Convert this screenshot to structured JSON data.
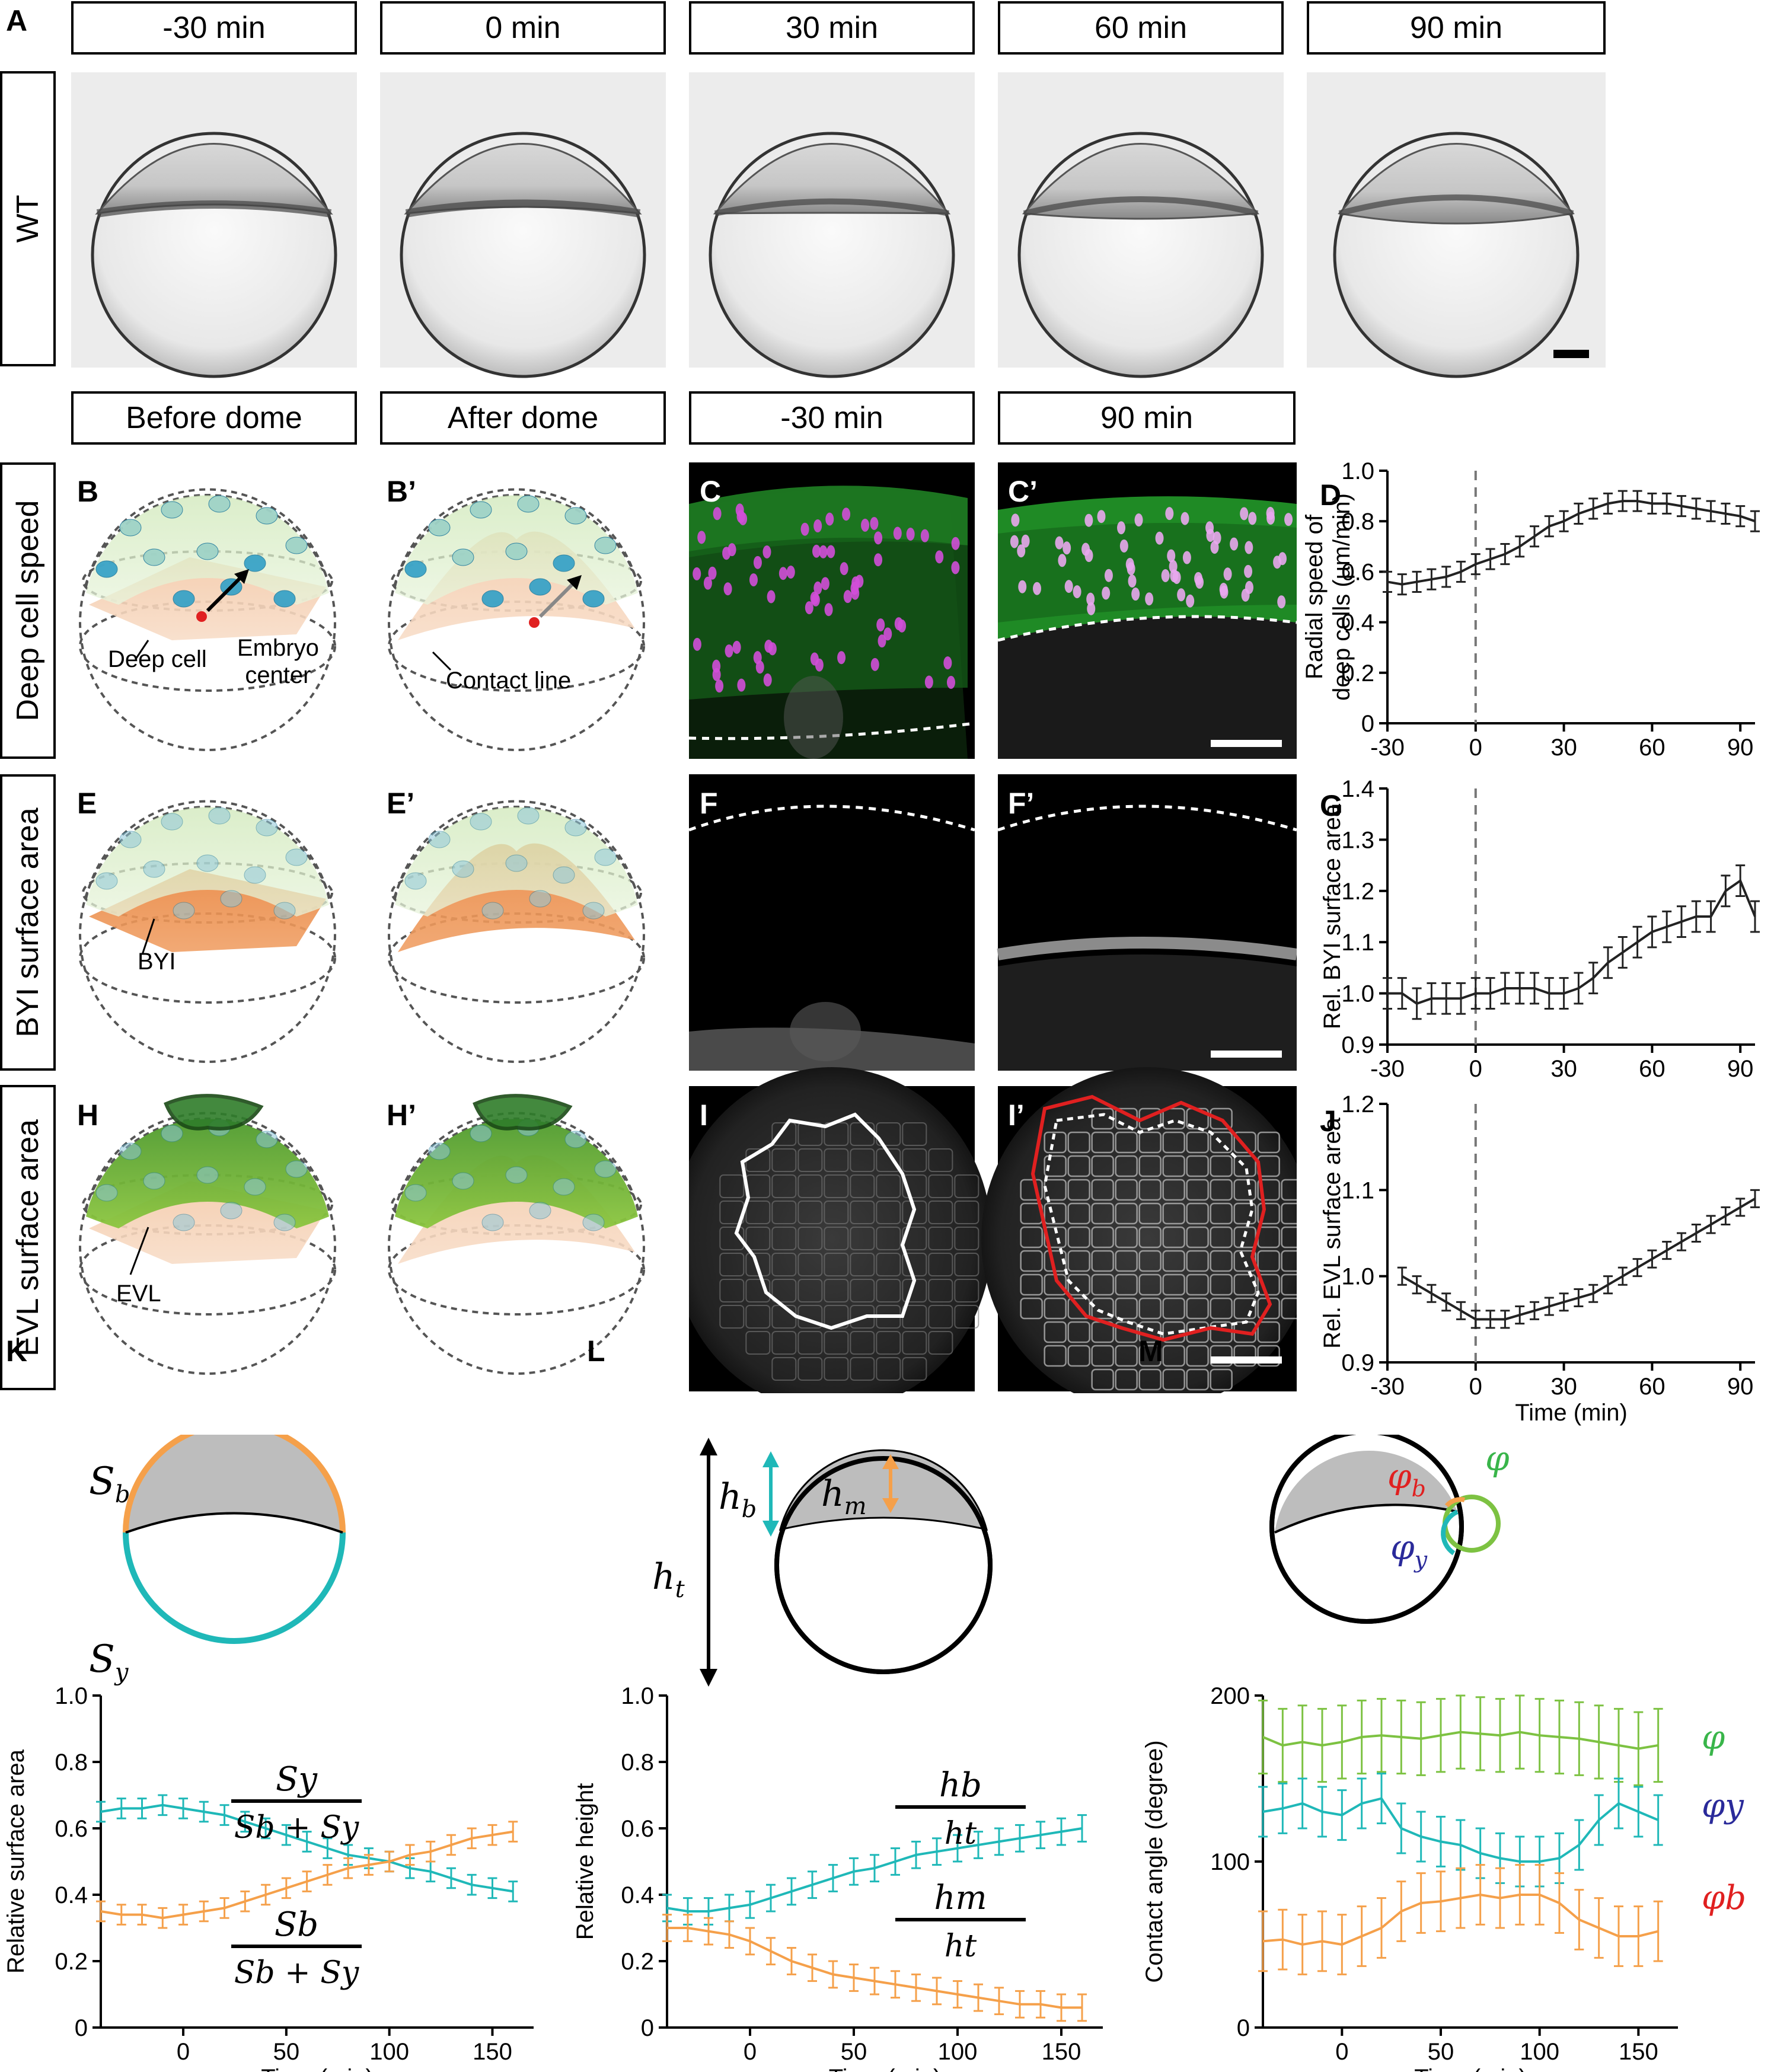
{
  "letters": {
    "A": "A",
    "B": "B",
    "Bp": "B’",
    "C": "C",
    "Cp": "C’",
    "D": "D",
    "E": "E",
    "Ep": "E’",
    "F": "F",
    "Fp": "F’",
    "G": "G",
    "H": "H",
    "Hp": "H’",
    "I": "I",
    "Ip": "I’",
    "J": "J",
    "K": "K",
    "L": "L",
    "M": "M"
  },
  "rowA": {
    "headers": [
      "-30 min",
      "0 min",
      "30 min",
      "60 min",
      "90 min"
    ],
    "row_label": "WT"
  },
  "rowB": {
    "headers": [
      "Before dome",
      "After dome",
      "-30 min",
      "90 min"
    ]
  },
  "row_labels": {
    "deep": "Deep cell speed",
    "byi": "BYI surface area",
    "evl": "EVL surface area"
  },
  "annotations": {
    "deep_cell": "Deep cell",
    "embryo_center_1": "Embryo",
    "embryo_center_2": "center",
    "contact_line": "Contact line",
    "byi": "BYI",
    "evl": "EVL"
  },
  "colors": {
    "green": "#39b54a",
    "magenta": "#d24fd8",
    "cyan": "#1fb8b8",
    "orange": "#f5a04a",
    "lime": "#7dc242",
    "red": "#e02020",
    "navy": "#2a2a9a"
  },
  "chart_data": [
    {
      "id": "D",
      "type": "line",
      "ylabel": "Radial speed of deep cells (µm/min)",
      "ylabel_line1": "Radial speed of",
      "ylabel_line2": "deep cells (µm/min)",
      "xlim": [
        -30,
        95
      ],
      "ylim": [
        0,
        1.0
      ],
      "xticks": [
        -30,
        0,
        30,
        60,
        90
      ],
      "yticks": [
        0,
        0.2,
        0.4,
        0.6,
        0.8,
        1.0
      ],
      "ytick_labels": [
        "0",
        "0.2",
        "0.4",
        "0.6",
        "0.8",
        "1.0"
      ],
      "x": [
        -30,
        -25,
        -20,
        -15,
        -10,
        -5,
        0,
        5,
        10,
        15,
        20,
        25,
        30,
        35,
        40,
        45,
        50,
        55,
        60,
        65,
        70,
        75,
        80,
        85,
        90,
        95
      ],
      "y": [
        0.56,
        0.55,
        0.56,
        0.57,
        0.58,
        0.6,
        0.63,
        0.65,
        0.67,
        0.7,
        0.74,
        0.78,
        0.8,
        0.83,
        0.85,
        0.87,
        0.88,
        0.88,
        0.87,
        0.87,
        0.86,
        0.85,
        0.84,
        0.83,
        0.82,
        0.8
      ],
      "err": 0.04
    },
    {
      "id": "G",
      "type": "line",
      "ylabel": "Rel. BYI surface area",
      "xlim": [
        -30,
        95
      ],
      "ylim": [
        0.9,
        1.4
      ],
      "xticks": [
        -30,
        0,
        30,
        60,
        90
      ],
      "yticks": [
        0.9,
        1.0,
        1.1,
        1.2,
        1.3,
        1.4
      ],
      "ytick_labels": [
        "0.9",
        "1.0",
        "1.1",
        "1.2",
        "1.3",
        "1.4"
      ],
      "x": [
        -30,
        -25,
        -20,
        -15,
        -10,
        -5,
        0,
        5,
        10,
        15,
        20,
        25,
        30,
        35,
        40,
        45,
        50,
        55,
        60,
        65,
        70,
        75,
        80,
        85,
        90,
        95
      ],
      "y": [
        1.0,
        1.0,
        0.98,
        0.99,
        0.99,
        0.99,
        1.0,
        1.0,
        1.01,
        1.01,
        1.01,
        1.0,
        1.0,
        1.01,
        1.03,
        1.06,
        1.08,
        1.1,
        1.12,
        1.13,
        1.14,
        1.15,
        1.15,
        1.2,
        1.22,
        1.15
      ],
      "err": 0.03
    },
    {
      "id": "J",
      "type": "line",
      "xlabel": "Time (min)",
      "ylabel": "Rel. EVL surface area",
      "xlim": [
        -30,
        95
      ],
      "ylim": [
        0.9,
        1.2
      ],
      "xticks": [
        -30,
        0,
        30,
        60,
        90
      ],
      "yticks": [
        0.9,
        1.0,
        1.1,
        1.2
      ],
      "ytick_labels": [
        "0.9",
        "1.0",
        "1.1",
        "1.2"
      ],
      "x": [
        -25,
        -20,
        -15,
        -10,
        -5,
        0,
        5,
        10,
        15,
        20,
        25,
        30,
        35,
        40,
        45,
        50,
        55,
        60,
        65,
        70,
        75,
        80,
        85,
        90,
        95
      ],
      "y": [
        1.0,
        0.99,
        0.98,
        0.97,
        0.96,
        0.95,
        0.95,
        0.95,
        0.955,
        0.96,
        0.965,
        0.97,
        0.975,
        0.98,
        0.99,
        1.0,
        1.01,
        1.02,
        1.03,
        1.04,
        1.05,
        1.06,
        1.07,
        1.08,
        1.09
      ],
      "err": 0.01
    },
    {
      "id": "K",
      "type": "line",
      "xlabel": "Time (min)",
      "ylabel": "Relative surface area",
      "xlim": [
        -40,
        170
      ],
      "ylim": [
        0,
        1.0
      ],
      "xticks": [
        0,
        50,
        100,
        150
      ],
      "yticks": [
        0,
        0.2,
        0.4,
        0.6,
        0.8,
        1.0
      ],
      "ytick_labels": [
        "0",
        "0.2",
        "0.4",
        "0.6",
        "0.8",
        "1.0"
      ],
      "x": [
        -40,
        -30,
        -20,
        -10,
        0,
        10,
        20,
        30,
        40,
        50,
        60,
        70,
        80,
        90,
        100,
        110,
        120,
        130,
        140,
        150,
        160
      ],
      "series": [
        {
          "color": "#1fb8b8",
          "y": [
            0.65,
            0.66,
            0.66,
            0.67,
            0.66,
            0.65,
            0.64,
            0.62,
            0.6,
            0.58,
            0.56,
            0.54,
            0.52,
            0.51,
            0.5,
            0.48,
            0.47,
            0.45,
            0.43,
            0.42,
            0.41
          ]
        },
        {
          "color": "#f5a04a",
          "y": [
            0.35,
            0.34,
            0.34,
            0.33,
            0.34,
            0.35,
            0.36,
            0.38,
            0.4,
            0.42,
            0.44,
            0.46,
            0.48,
            0.49,
            0.5,
            0.52,
            0.53,
            0.55,
            0.57,
            0.58,
            0.59
          ]
        }
      ],
      "err": 0.03
    },
    {
      "id": "L",
      "type": "line",
      "xlabel": "Time (min)",
      "ylabel": "Relative height",
      "xlim": [
        -40,
        170
      ],
      "ylim": [
        0,
        1.0
      ],
      "xticks": [
        0,
        50,
        100,
        150
      ],
      "yticks": [
        0,
        0.2,
        0.4,
        0.6,
        0.8,
        1.0
      ],
      "ytick_labels": [
        "0",
        "0.2",
        "0.4",
        "0.6",
        "0.8",
        "1.0"
      ],
      "x": [
        -40,
        -30,
        -20,
        -10,
        0,
        10,
        20,
        30,
        40,
        50,
        60,
        70,
        80,
        90,
        100,
        110,
        120,
        130,
        140,
        150,
        160
      ],
      "series": [
        {
          "color": "#1fb8b8",
          "y": [
            0.36,
            0.35,
            0.35,
            0.36,
            0.37,
            0.39,
            0.41,
            0.43,
            0.45,
            0.47,
            0.48,
            0.5,
            0.52,
            0.53,
            0.54,
            0.55,
            0.56,
            0.57,
            0.58,
            0.59,
            0.6
          ]
        },
        {
          "color": "#f5a04a",
          "y": [
            0.3,
            0.3,
            0.29,
            0.28,
            0.26,
            0.23,
            0.2,
            0.18,
            0.16,
            0.15,
            0.14,
            0.13,
            0.12,
            0.11,
            0.1,
            0.09,
            0.08,
            0.07,
            0.07,
            0.06,
            0.06
          ]
        }
      ],
      "err": 0.04
    },
    {
      "id": "M",
      "type": "line",
      "xlabel": "Time (min)",
      "ylabel": "Contact angle (degree)",
      "xlim": [
        -40,
        170
      ],
      "ylim": [
        0,
        200
      ],
      "xticks": [
        0,
        50,
        100,
        150
      ],
      "yticks": [
        0,
        100,
        200
      ],
      "ytick_labels": [
        "0",
        "100",
        "200"
      ],
      "x": [
        -40,
        -30,
        -20,
        -10,
        0,
        10,
        20,
        30,
        40,
        50,
        60,
        70,
        80,
        90,
        100,
        110,
        120,
        130,
        140,
        150,
        160
      ],
      "series": [
        {
          "color": "#7dc242",
          "y": [
            175,
            170,
            172,
            170,
            172,
            175,
            176,
            175,
            174,
            176,
            178,
            177,
            176,
            178,
            176,
            175,
            174,
            172,
            170,
            168,
            170
          ],
          "err": 22
        },
        {
          "color": "#1fb8b8",
          "y": [
            130,
            132,
            135,
            130,
            128,
            135,
            138,
            120,
            115,
            112,
            110,
            105,
            102,
            100,
            100,
            102,
            110,
            125,
            135,
            130,
            125
          ],
          "err": 15
        },
        {
          "color": "#f5a04a",
          "y": [
            52,
            53,
            50,
            52,
            50,
            55,
            60,
            70,
            75,
            76,
            78,
            80,
            78,
            80,
            80,
            75,
            65,
            60,
            55,
            55,
            58
          ],
          "err": 18
        }
      ]
    }
  ],
  "chart_labels": {
    "xlabel": "Time (min)",
    "K_top_num": "Sy",
    "K_top_den": "Sb + Sy",
    "K_bot_num": "Sb",
    "K_bot_den": "Sb + Sy",
    "L_top_num": "hb",
    "L_top_den": "ht",
    "L_bot_num": "hm",
    "L_bot_den": "ht",
    "M_phi": "φ",
    "M_phiy": "φy",
    "M_phib": "φb"
  },
  "schematic_labels": {
    "Sb": "Sb",
    "Sy": "Sy",
    "hb": "hb",
    "hm": "hm",
    "ht": "ht",
    "phib": "φb",
    "phi": "φ",
    "phiy": "φy"
  }
}
